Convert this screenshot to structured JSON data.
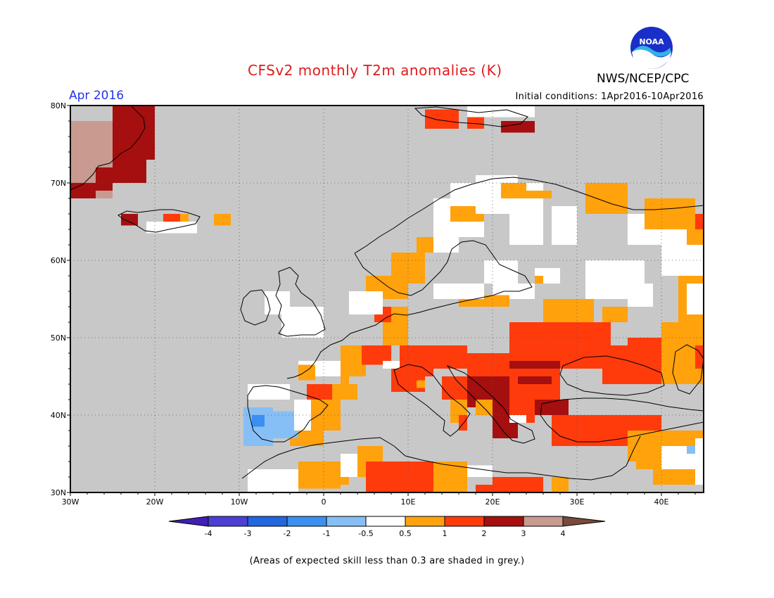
{
  "header": {
    "title": "CFSv2 monthly T2m anomalies (K)",
    "agency": "NWS/NCEP/CPC",
    "logo_text": "NOAA",
    "month": "Apr 2016",
    "initial_conditions": "Initial conditions: 1Apr2016-10Apr2016"
  },
  "map": {
    "lat_labels": [
      "80N",
      "70N",
      "60N",
      "50N",
      "40N",
      "30N"
    ],
    "lon_labels": [
      "30W",
      "20W",
      "10W",
      "0",
      "10E",
      "20E",
      "30E",
      "40E"
    ],
    "grid": true,
    "land_default_fill": "#c8c8c8",
    "ocean_fill": "#c8c8c8"
  },
  "legend": {
    "bins": [
      {
        "color": "#3f1fb4",
        "label": "-4"
      },
      {
        "color": "#4c3fd6",
        "label": "-3"
      },
      {
        "color": "#2266e0",
        "label": "-2"
      },
      {
        "color": "#3a8ff0",
        "label": "-1"
      },
      {
        "color": "#86bff5",
        "label": "-0.5"
      },
      {
        "color": "#ffffff",
        "label": "0.5"
      },
      {
        "color": "#ffa20c",
        "label": "1"
      },
      {
        "color": "#ff3b0c",
        "label": "2"
      },
      {
        "color": "#a60f0f",
        "label": "3"
      },
      {
        "color": "#c89a90",
        "label": "4"
      },
      {
        "color": "#7a4a3a",
        "label": ""
      }
    ]
  },
  "footnote": "(Areas of expected skill less than 0.3 are shaded in grey.)"
}
